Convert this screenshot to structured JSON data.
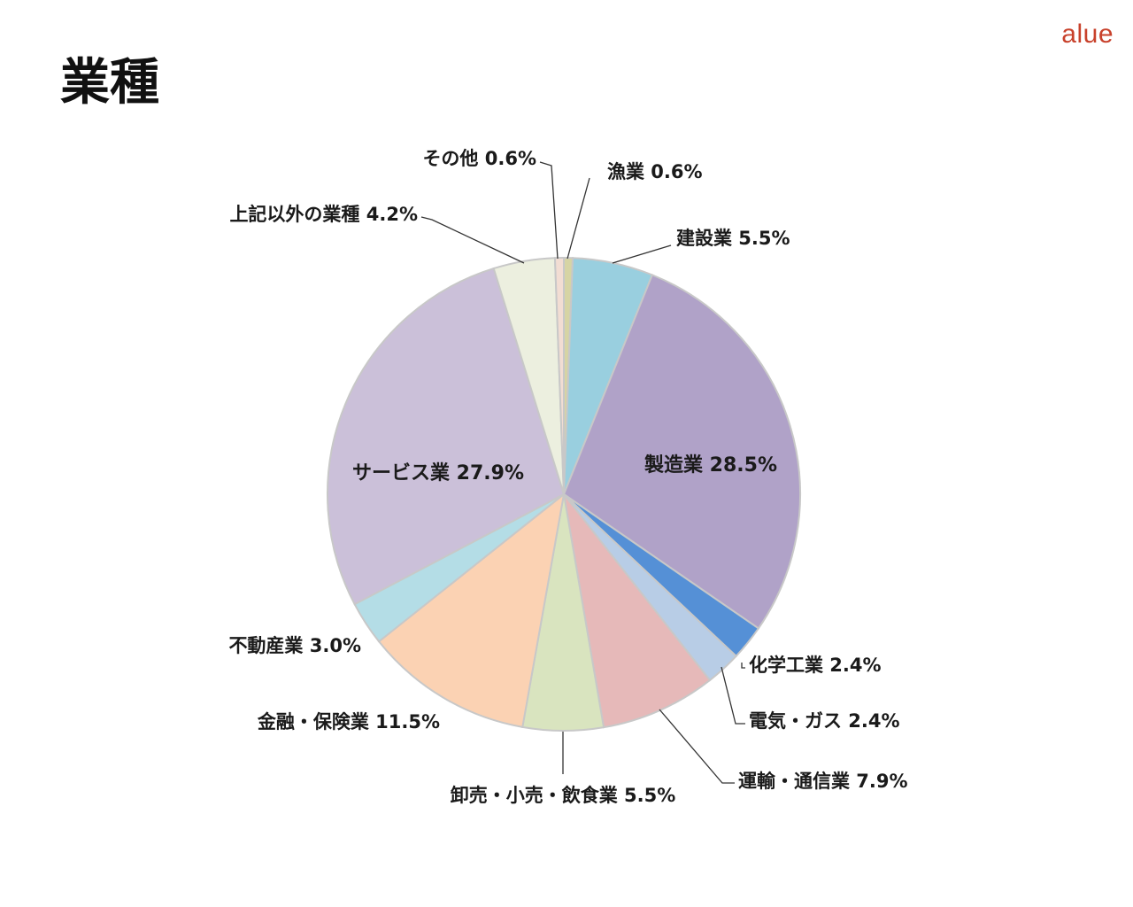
{
  "page": {
    "title": "業種",
    "logo": "alue"
  },
  "chart_data": {
    "type": "pie",
    "title": "業種",
    "unit": "%",
    "start_angle_deg": 0,
    "direction": "clockwise",
    "slices": [
      {
        "name": "漁業",
        "value": 0.6,
        "label": "漁業 0.6%",
        "color": "#d6d4a4"
      },
      {
        "name": "建設業",
        "value": 5.5,
        "label": "建設業 5.5%",
        "color": "#99cfdf"
      },
      {
        "name": "製造業",
        "value": 28.5,
        "label": "製造業 28.5%",
        "color": "#b0a2c8"
      },
      {
        "name": "化学工業",
        "value": 2.4,
        "label": "化学工業 2.4%",
        "color": "#5590d6"
      },
      {
        "name": "電気・ガス",
        "value": 2.4,
        "label": "電気・ガス 2.4%",
        "color": "#b8cde6"
      },
      {
        "name": "運輸・通信業",
        "value": 7.9,
        "label": "運輸・通信業 7.9%",
        "color": "#e6b9b9"
      },
      {
        "name": "卸売・小売・飲食業",
        "value": 5.5,
        "label": "卸売・小売・飲食業 5.5%",
        "color": "#d9e4bf"
      },
      {
        "name": "金融・保険業",
        "value": 11.5,
        "label": "金融・保険業 11.5%",
        "color": "#fbd2b3"
      },
      {
        "name": "不動産業",
        "value": 3.0,
        "label": "不動産業 3.0%",
        "color": "#b4dde6"
      },
      {
        "name": "サービス業",
        "value": 27.9,
        "label": "サービス業 27.9%",
        "color": "#cbc0d9"
      },
      {
        "name": "上記以外の業種",
        "value": 4.2,
        "label": "上記以外の業種 4.2%",
        "color": "#ecefdf"
      },
      {
        "name": "その他",
        "value": 0.6,
        "label": "その他 0.6%",
        "color": "#f2ddd3"
      }
    ],
    "labels_position": "outside-with-leader-lines",
    "legend": "none",
    "colors": {
      "slice_border": "#c8c8c8",
      "leader_line": "#333333"
    }
  }
}
